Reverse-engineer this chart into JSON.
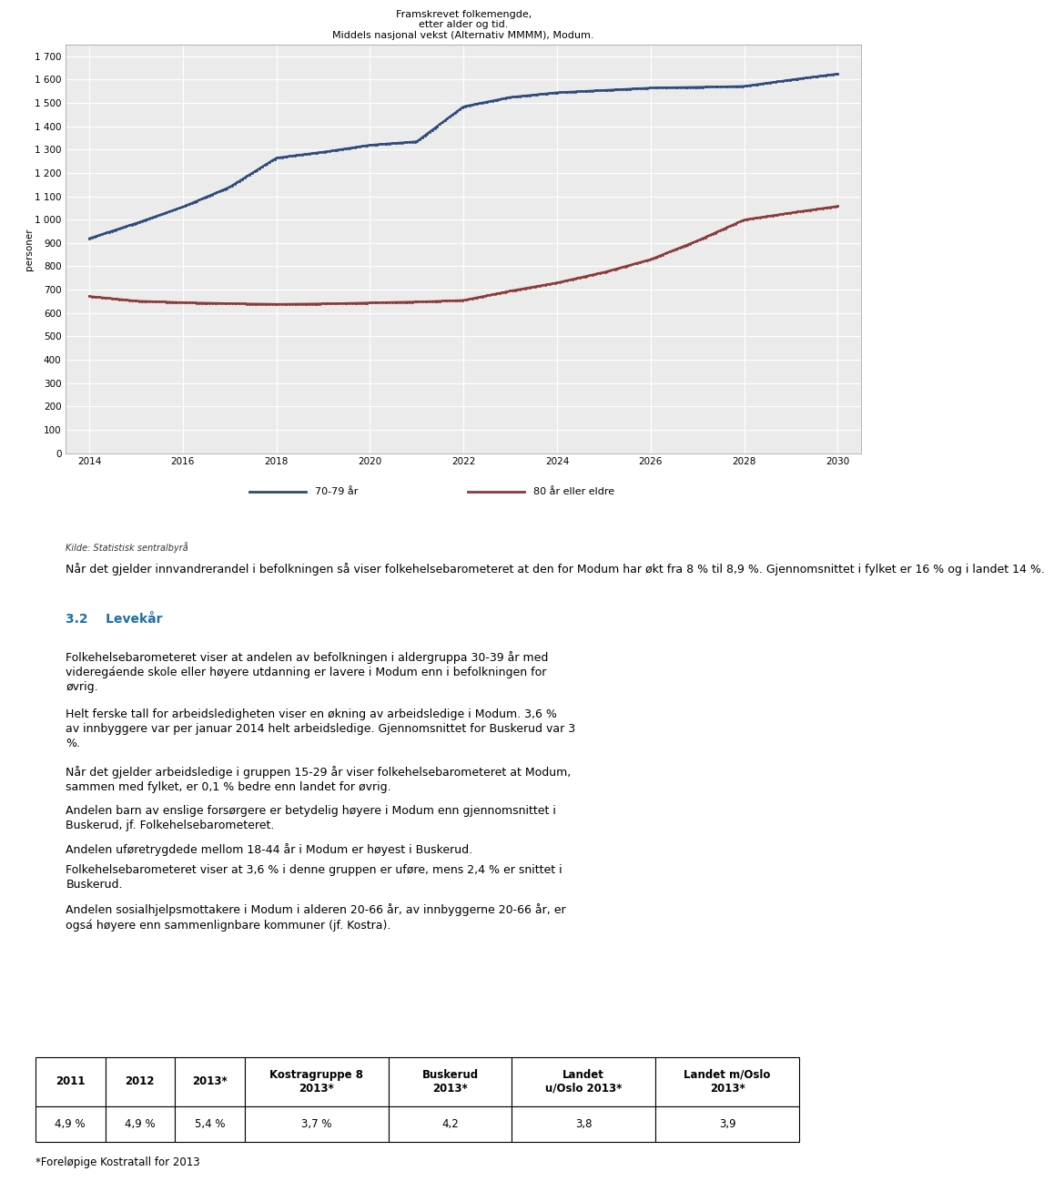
{
  "title_line1": "Framskrevet folkemengde,",
  "title_line2": "etter alder og tid.",
  "title_line3": "Middels nasjonal vekst (Alternativ MMMM), Modum.",
  "ylabel": "personer",
  "xlabel_ticks": [
    2014,
    2016,
    2018,
    2020,
    2022,
    2024,
    2026,
    2028,
    2030
  ],
  "yticks": [
    0,
    100,
    200,
    300,
    400,
    500,
    600,
    700,
    800,
    900,
    1000,
    1100,
    1200,
    1300,
    1400,
    1500,
    1600,
    1700
  ],
  "ylim": [
    0,
    1750
  ],
  "xlim": [
    2013.5,
    2030.5
  ],
  "line1_label": "70-79 år",
  "line2_label": "80 år eller eldre",
  "line1_color": "#2e4a7a",
  "line2_color": "#8b3a3a",
  "source_text": "Kilde: Statistisk sentralbyrå",
  "paragraph1": "Når det gjelder innvandrerandel i befolkningen så viser folkehelsebarometeret at den for Modum har økt fra 8 % til 8,9 %. Gjennomsnittet i fylket er 16 % og i landet 14 %.",
  "heading_num": "3.2",
  "heading_tab": "    ",
  "heading_text": "Levekår",
  "heading_color": "#1e6ea8",
  "body_paragraphs": [
    "Folkehelsebarometeret viser at andelen av befolkningen i aldergruppa 30-39 år med videregáende skole eller høyere utdanning er lavere i Modum enn i befolkningen for øvrig.",
    "Helt ferske tall for arbeidsledigheten viser en økning av arbeidsledige i Modum. 3,6 % av innbyggere var per januar 2014 helt arbeidsledige. Gjennomsnittet for Buskerud var 3 %.",
    "Når det gjelder arbeidsledige i gruppen 15-29 år viser folkehelsebarometeret at Modum, sammen med fylket, er 0,1 % bedre enn landet for øvrig.",
    "Andelen barn av enslige forsørgere er betydelig høyere i Modum enn gjennomsnittet i Buskerud, jf. Folkehelsebarometeret.",
    "Andelen uføretrygdede mellom 18-44 år i Modum er høyest i Buskerud.",
    "Folkehelsebarometeret viser at 3,6 % i denne gruppen er uføre, mens 2,4 % er snittet i Buskerud.",
    "Andelen sosialhjelpsmottakere i Modum i alderen 20-66 år, av innbyggerne 20-66 år, er ogsá høyere enn sammenlignbare kommuner (jf. Kostra)."
  ],
  "table_headers": [
    "2011",
    "2012",
    "2013*",
    "Kostragruppe 8\n2013*",
    "Buskerud\n2013*",
    "Landet\nu/Oslo 2013*",
    "Landet m/Oslo\n2013*"
  ],
  "table_values": [
    "4,9 %",
    "4,9 %",
    "5,4 %",
    "3,7 %",
    "4,2",
    "3,8",
    "3,9"
  ],
  "table_footer": "*Foreløpige Kostratall for 2013",
  "background_color": "#ffffff",
  "chart_bg": "#ebebeb"
}
